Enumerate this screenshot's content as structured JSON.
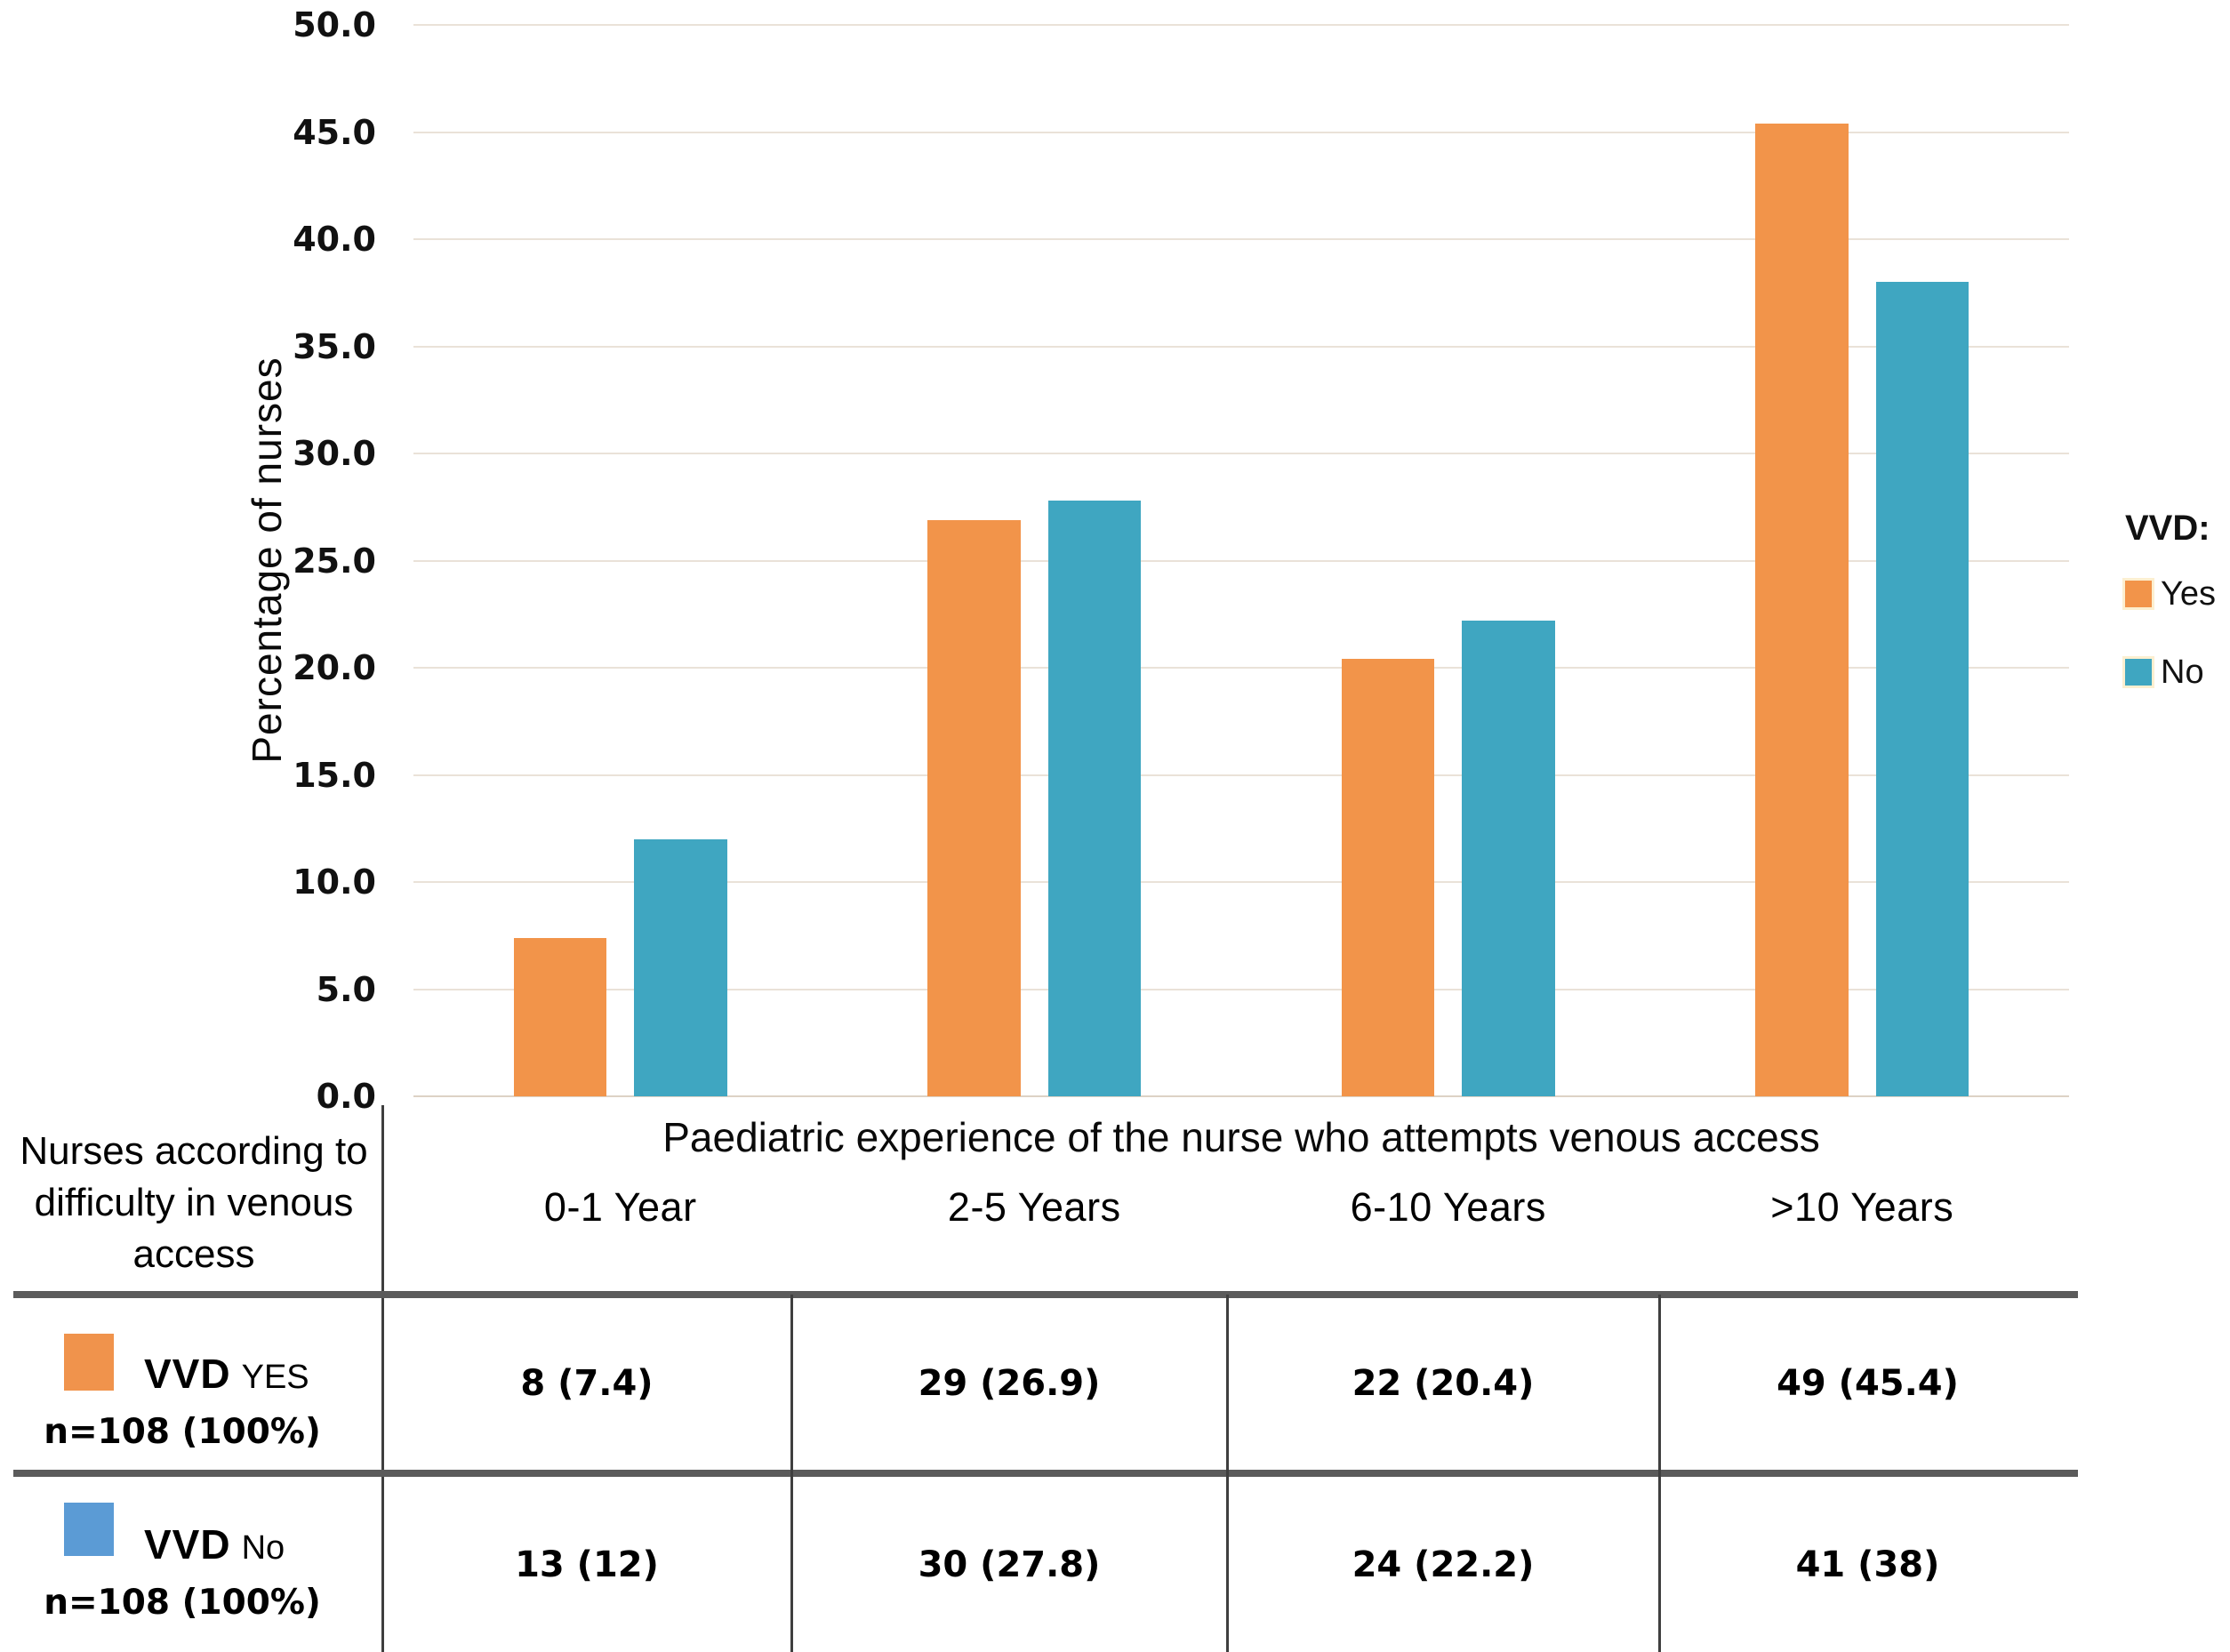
{
  "chart_data": {
    "type": "bar",
    "title": "",
    "categories": [
      "0-1 Year",
      "2-5 Years",
      "6-10 Years",
      ">10 Years"
    ],
    "series": [
      {
        "name": "Yes",
        "color": "#F2944A",
        "values": [
          7.4,
          26.9,
          20.4,
          45.4
        ]
      },
      {
        "name": "No",
        "color": "#3FA6C1",
        "values": [
          12,
          27.8,
          22.2,
          38
        ]
      }
    ],
    "xlabel": "Paediatric experience of the nurse who attempts venous access",
    "ylabel": "Percentage of nurses",
    "ylim": [
      0,
      50
    ],
    "ytick_step": 5,
    "yticks": [
      "50.0",
      "45.0",
      "40.0",
      "35.0",
      "30.0",
      "25.0",
      "20.0",
      "15.0",
      "10.0",
      "5.0",
      "0.0"
    ],
    "grid": true,
    "legend": {
      "title": "VVD:",
      "position": "right",
      "items": [
        {
          "label": "Yes",
          "color": "#F2944A"
        },
        {
          "label": "No",
          "color": "#3FA6C1"
        }
      ]
    }
  },
  "table": {
    "row_header_title": "Nurses according to difficulty in venous access",
    "rows": [
      {
        "vvd": "VVD",
        "answer": "YES",
        "n": "n=108 (100%)",
        "swatch_color": "#F0934C",
        "cells": [
          "8 (7.4)",
          "29 (26.9)",
          "22 (20.4)",
          "49 (45.4)"
        ]
      },
      {
        "vvd": "VVD",
        "answer": "No",
        "n": "n=108 (100%)",
        "swatch_color": "#5B9BD5",
        "cells": [
          "13 (12)",
          "30 (27.8)",
          "24 (22.2)",
          "41 (38)"
        ]
      }
    ]
  }
}
